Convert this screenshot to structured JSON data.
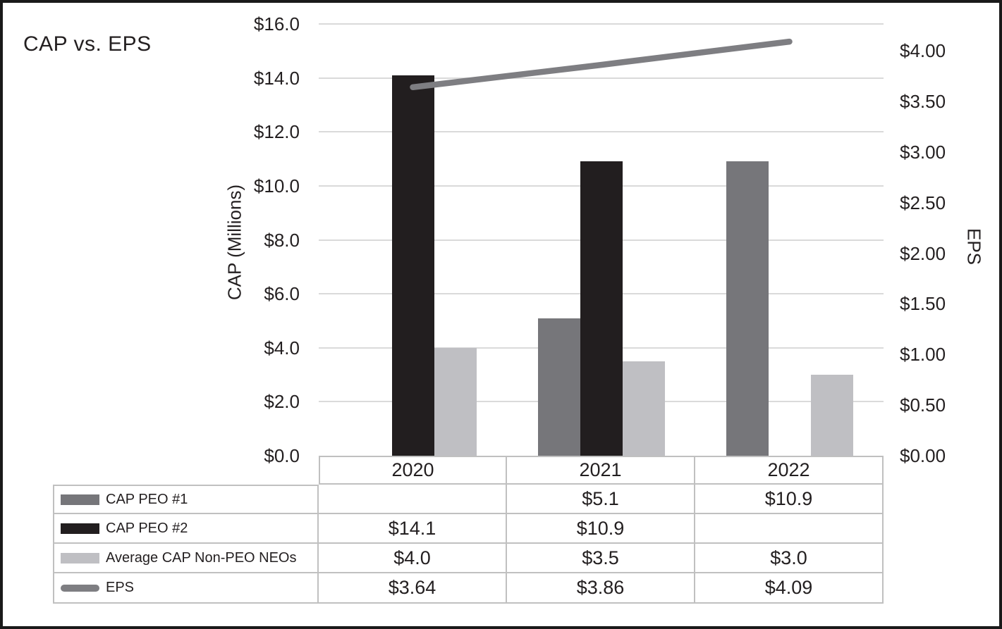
{
  "title": "CAP vs. EPS",
  "colors": {
    "gridline": "#dadada",
    "table_border": "#c0c0c0",
    "text": "#231f20",
    "frame": "#1a1a1a",
    "background": "#ffffff"
  },
  "chart_data": {
    "type": "combo-bar-line",
    "title": "CAP vs. EPS",
    "categories": [
      "2020",
      "2021",
      "2022"
    ],
    "series": [
      {
        "name": "CAP PEO #1",
        "kind": "bar",
        "axis": "left",
        "color": "#76767a",
        "values": [
          null,
          5.1,
          10.9
        ],
        "display_values": [
          "",
          "$5.1",
          "$10.9"
        ]
      },
      {
        "name": "CAP PEO #2",
        "kind": "bar",
        "axis": "left",
        "color": "#221e1f",
        "values": [
          14.1,
          10.9,
          null
        ],
        "display_values": [
          "$14.1",
          "$10.9",
          ""
        ]
      },
      {
        "name": "Average CAP Non-PEO NEOs",
        "kind": "bar",
        "axis": "left",
        "color": "#bfbfc3",
        "values": [
          4.0,
          3.5,
          3.0
        ],
        "display_values": [
          "$4.0",
          "$3.5",
          "$3.0"
        ]
      },
      {
        "name": "EPS",
        "kind": "line",
        "axis": "right",
        "color": "#7e7e82",
        "values": [
          3.64,
          3.86,
          4.09
        ],
        "display_values": [
          "$3.64",
          "$3.86",
          "$4.09"
        ]
      }
    ],
    "left_axis": {
      "title": "CAP (Millions)",
      "range": [
        0,
        16
      ],
      "tick_values": [
        16,
        14,
        12,
        10,
        8,
        6,
        4,
        2,
        0
      ],
      "tick_labels": [
        "$16.0",
        "$14.0",
        "$12.0",
        "$10.0",
        "$8.0",
        "$6.0",
        "$4.0",
        "$2.0",
        "$0.0"
      ]
    },
    "right_axis": {
      "title": "EPS",
      "range": [
        0,
        4
      ],
      "tick_values": [
        4.0,
        3.5,
        3.0,
        2.5,
        2.0,
        1.5,
        1.0,
        0.5,
        0.0
      ],
      "tick_labels": [
        "$4.00",
        "$3.50",
        "$3.00",
        "$2.50",
        "$2.00",
        "$1.50",
        "$1.00",
        "$0.50",
        "$0.00"
      ]
    },
    "grid": true,
    "legend_position": "table-left-column"
  }
}
